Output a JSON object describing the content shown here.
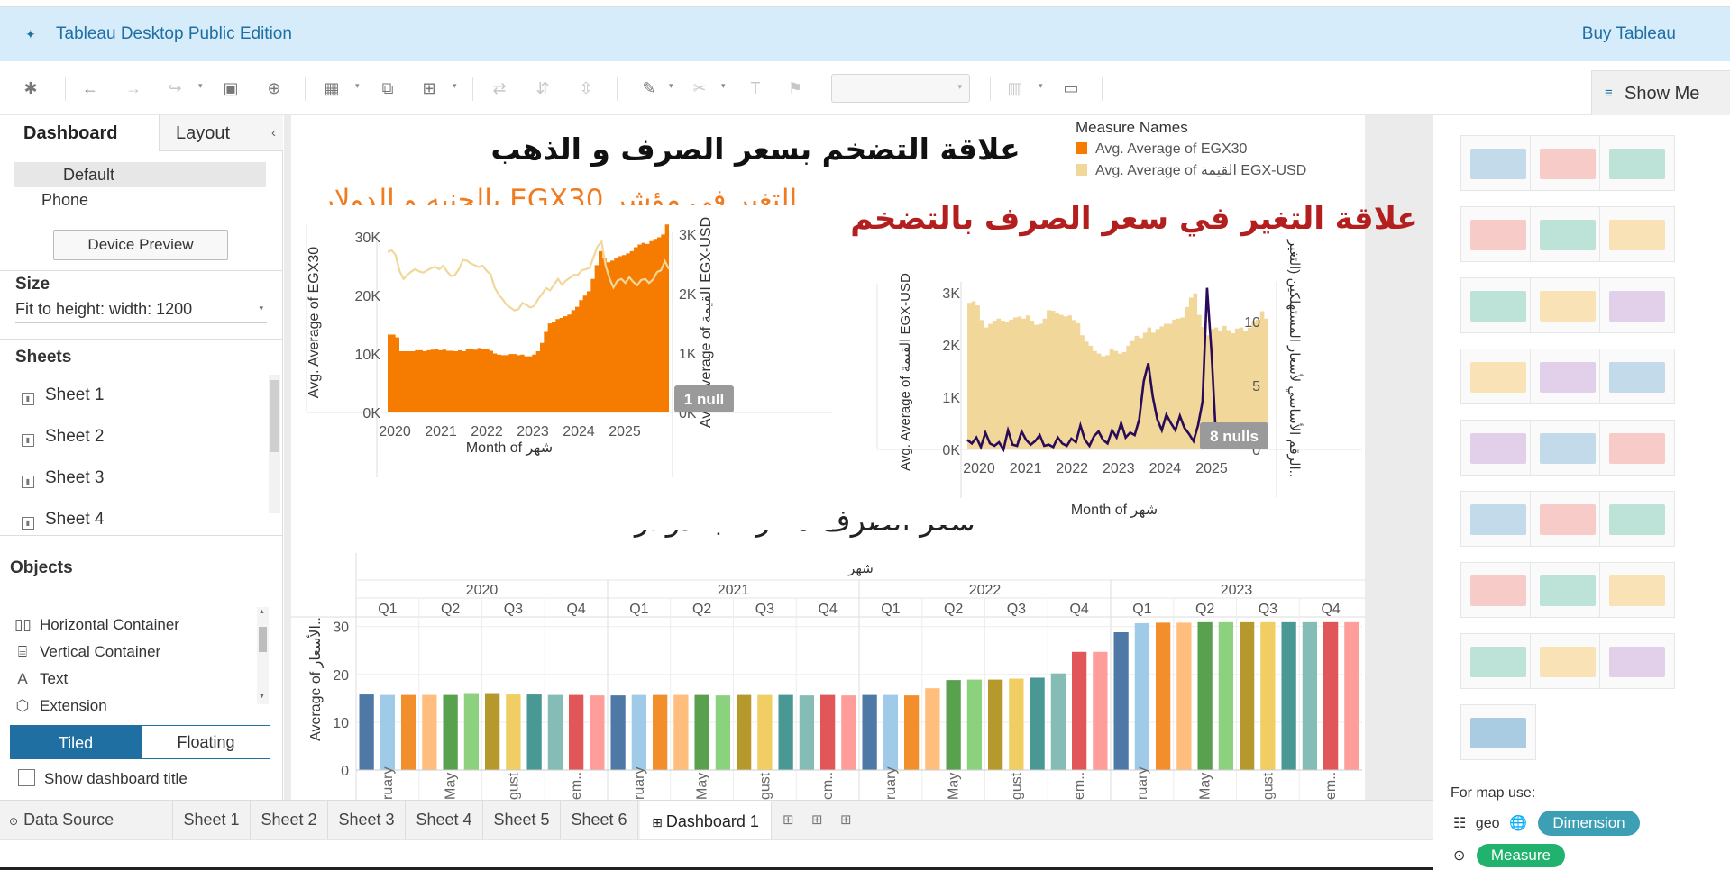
{
  "app": {
    "title": "Tableau Desktop Public Edition",
    "buy_label": "Buy Tableau",
    "show_me_label": "Show Me"
  },
  "left_panel": {
    "tabs": [
      "Dashboard",
      "Layout"
    ],
    "devices": [
      "Default",
      "Phone"
    ],
    "device_preview_label": "Device Preview",
    "size_heading": "Size",
    "size_value": "Fit to height: width: 1200",
    "sheets_heading": "Sheets",
    "sheets": [
      "Sheet 1",
      "Sheet 2",
      "Sheet 3",
      "Sheet 4"
    ],
    "objects_heading": "Objects",
    "objects": [
      "Horizontal Container",
      "Vertical Container",
      "Text",
      "Extension"
    ],
    "tiled_label": "Tiled",
    "floating_label": "Floating",
    "show_title_label": "Show dashboard title"
  },
  "dashboard": {
    "main_title": "علاقة التضخم بسعر الصرف و الذهب",
    "egx_title": "التغير فى مؤشر EGX30 بالجنيه و الدولار",
    "inflation_title": "علاقة التغير في سعر الصرف بالتضخم",
    "fx_title": "سعر الصرف مقارنة بالدولار",
    "legend": {
      "title": "Measure Names",
      "items": [
        {
          "label": "Avg. Average of EGX30",
          "color": "#f57c00"
        },
        {
          "label": "Avg. Average of القيمة EGX-USD",
          "color": "#f1d79a"
        }
      ]
    }
  },
  "chart_data": [
    {
      "type": "area",
      "x_label": "Month of شهر",
      "x_ticks": [
        "2020",
        "2021",
        "2022",
        "2023",
        "2024",
        "2025"
      ],
      "y_left_label": "Avg. Average of EGX30",
      "y_left_ticks": [
        "30K",
        "20K",
        "10K",
        "0K"
      ],
      "y_left_range": [
        0,
        34000
      ],
      "y_right_label": "Avg. Average of القيمة EGX-USD",
      "y_right_ticks": [
        "3K",
        "2K",
        "1K",
        "0K"
      ],
      "y_right_range": [
        0,
        3300
      ],
      "null_badge": "1 null",
      "series": [
        {
          "name": "Avg. Average of EGX30",
          "color": "#f57c00",
          "values": [
            14000,
            14000,
            13500,
            11000,
            11000,
            11000,
            11000,
            11200,
            11200,
            11000,
            11200,
            11300,
            11400,
            11200,
            11300,
            11100,
            11100,
            11000,
            11200,
            11000,
            11500,
            11500,
            11300,
            11600,
            11400,
            11400,
            11100,
            10600,
            10400,
            10300,
            10300,
            10500,
            10500,
            10300,
            10400,
            10100,
            10100,
            10400,
            11000,
            12500,
            14500,
            16000,
            16200,
            16800,
            17000,
            17300,
            17600,
            18400,
            19000,
            20200,
            21000,
            21800,
            24000,
            26500,
            29000,
            27700,
            27000,
            27300,
            27700,
            28100,
            28300,
            28600,
            29000,
            29700,
            30200,
            30500,
            30300,
            30800,
            31200,
            31500,
            32000,
            33800
          ]
        },
        {
          "name": "Avg. Average of القيمة EGX-USD",
          "color": "#f1d79a",
          "values": [
            2800,
            2830,
            2750,
            2470,
            2330,
            2400,
            2460,
            2500,
            2460,
            2440,
            2480,
            2520,
            2540,
            2500,
            2560,
            2460,
            2380,
            2400,
            2500,
            2660,
            2650,
            2600,
            2570,
            2540,
            2560,
            2470,
            2410,
            2180,
            2060,
            1980,
            1880,
            1830,
            1780,
            1800,
            1910,
            1880,
            1830,
            1860,
            1980,
            2070,
            2170,
            2130,
            2230,
            2330,
            2230,
            2300,
            2350,
            2400,
            2400,
            2480,
            2500,
            2520,
            2720,
            2900,
            2980,
            2570,
            2340,
            2180,
            2300,
            2330,
            2260,
            2360,
            2280,
            2220,
            2310,
            2330,
            2260,
            2320,
            2450,
            2480,
            2640,
            2500
          ]
        }
      ]
    },
    {
      "type": "area",
      "x_label": "Month of شهر",
      "x_ticks": [
        "2020",
        "2021",
        "2022",
        "2023",
        "2024",
        "2025"
      ],
      "y_left_label": "Avg. Average of القيمة EGX-USD",
      "y_left_ticks": [
        "3K",
        "2K",
        "1K",
        "0K"
      ],
      "y_left_range": [
        0,
        3200
      ],
      "y_right_label": "الرقم الأساسي لأسعار المستهلكين (التغير..",
      "y_right_ticks": [
        "10",
        "5",
        "0"
      ],
      "y_right_range": [
        0,
        14
      ],
      "null_badge": "8 nulls",
      "series": [
        {
          "name": "Avg. Average of القيمة EGX-USD",
          "color": "#f1d79a",
          "values": [
            2800,
            2830,
            2750,
            2470,
            2330,
            2400,
            2460,
            2500,
            2460,
            2440,
            2480,
            2520,
            2540,
            2500,
            2560,
            2460,
            2380,
            2400,
            2500,
            2660,
            2650,
            2600,
            2570,
            2540,
            2560,
            2470,
            2410,
            2180,
            2060,
            1980,
            1880,
            1830,
            1780,
            1800,
            1910,
            1880,
            1830,
            1860,
            1980,
            2070,
            2170,
            2130,
            2230,
            2330,
            2230,
            2300,
            2350,
            2400,
            2400,
            2480,
            2500,
            2520,
            2720,
            2900,
            2980,
            2570,
            2340,
            2180,
            2300,
            2330,
            2260,
            2360,
            2280,
            2220,
            2310,
            2330,
            2260,
            2320,
            2450,
            2480,
            2640,
            2500
          ]
        },
        {
          "name": "الرقم الأساسي لأسعار المستهلكين (التغير..",
          "color": "#2a0b5a",
          "values": [
            0.8,
            0.5,
            1.0,
            0.2,
            1.4,
            0.5,
            0.3,
            0.6,
            0.0,
            1.6,
            0.4,
            0.3,
            1.5,
            0.8,
            0.4,
            0.7,
            1.2,
            0.3,
            0.4,
            0.2,
            1.0,
            0.5,
            0.3,
            0.9,
            0.6,
            2.0,
            0.8,
            0.3,
            1.1,
            1.5,
            0.8,
            0.5,
            1.6,
            1.0,
            2.2,
            1.0,
            1.4,
            1.2,
            2.5,
            5.7,
            7.2,
            4.4,
            2.5,
            1.6,
            2.9,
            2.2,
            1.6,
            2.8,
            1.8,
            1.3,
            0.7,
            2.0,
            4.0,
            13.5,
            8.0,
            0.8,
            2.2,
            0.2
          ]
        }
      ]
    },
    {
      "type": "bar",
      "x_label": "شهر",
      "y_label": "Average of الأسعار..",
      "y_ticks": [
        "30",
        "20",
        "10",
        "0"
      ],
      "y_range": [
        0,
        32
      ],
      "years": [
        "2020",
        "2021",
        "2022",
        "2023"
      ],
      "quarters": [
        "Q1",
        "Q2",
        "Q3",
        "Q4"
      ],
      "month_labels": [
        "ruary",
        "May",
        "gust",
        "em.."
      ],
      "values": [
        15.8,
        15.7,
        15.7,
        15.7,
        15.7,
        15.9,
        15.9,
        15.8,
        15.8,
        15.7,
        15.7,
        15.6,
        15.6,
        15.7,
        15.7,
        15.7,
        15.7,
        15.6,
        15.7,
        15.7,
        15.7,
        15.6,
        15.7,
        15.6,
        15.7,
        15.7,
        15.6,
        17.1,
        18.8,
        18.9,
        18.9,
        19.1,
        19.3,
        20.2,
        24.7,
        24.7,
        28.8,
        30.7,
        30.8,
        30.8,
        30.9,
        30.9,
        30.9,
        30.9,
        30.9,
        30.9,
        30.9,
        30.9
      ],
      "colors": [
        "#4e79a7",
        "#a0cbe8",
        "#f28e2b",
        "#ffbe7d",
        "#59a14f",
        "#8cd17d",
        "#b6992d",
        "#f1ce63",
        "#499894",
        "#86bcb6",
        "#e15759",
        "#ff9d9a"
      ]
    }
  ],
  "right_panel": {
    "map_use_label": "For map use:",
    "geo_label": "geo",
    "dimension_label": "Dimension",
    "measure_label": "Measure"
  },
  "bottom_tabs": {
    "data_source": "Data Source",
    "sheets": [
      "Sheet 1",
      "Sheet 2",
      "Sheet 3",
      "Sheet 4",
      "Sheet 5",
      "Sheet 6"
    ],
    "active": "Dashboard 1"
  }
}
